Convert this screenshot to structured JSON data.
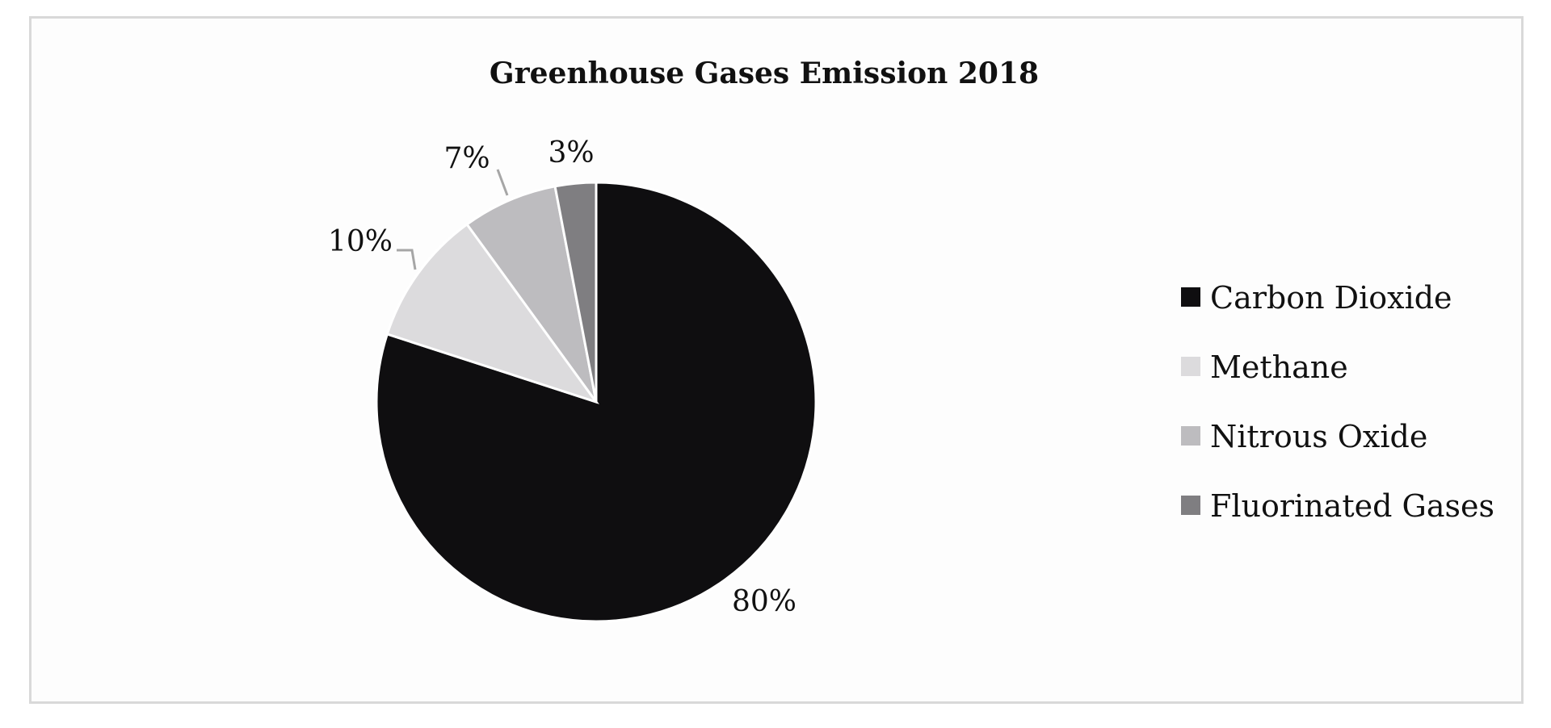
{
  "chart_data": {
    "type": "pie",
    "title": "Greenhouse Gases Emission 2018",
    "categories": [
      "Carbon Dioxide",
      "Methane",
      "Nitrous Oxide",
      "Fluorinated Gases"
    ],
    "values": [
      80,
      10,
      7,
      3
    ],
    "labels": [
      "80%",
      "10%",
      "7%",
      "3%"
    ],
    "colors": [
      "#0f0e10",
      "#dcdbdd",
      "#bdbcbf",
      "#7f7e81"
    ],
    "start_angle": "12 o'clock",
    "direction": "clockwise",
    "legend_position": "right"
  }
}
